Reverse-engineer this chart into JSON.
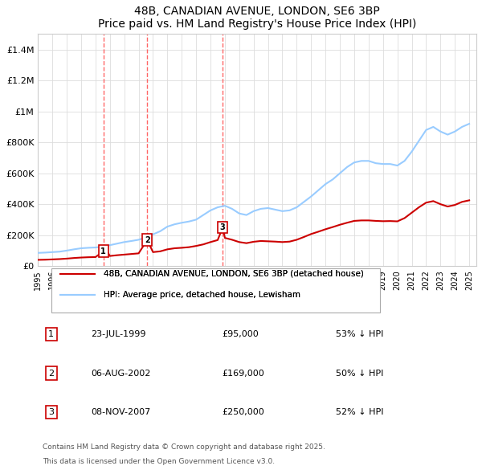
{
  "title": "48B, CANADIAN AVENUE, LONDON, SE6 3BP",
  "subtitle": "Price paid vs. HM Land Registry's House Price Index (HPI)",
  "legend_property": "48B, CANADIAN AVENUE, LONDON, SE6 3BP (detached house)",
  "legend_hpi": "HPI: Average price, detached house, Lewisham",
  "footer1": "Contains HM Land Registry data © Crown copyright and database right 2025.",
  "footer2": "This data is licensed under the Open Government Licence v3.0.",
  "sales": [
    {
      "label": "1",
      "date": "23-JUL-1999",
      "price": 95000,
      "year": 1999.55,
      "hpi_pct": "53% ↓ HPI"
    },
    {
      "label": "2",
      "date": "06-AUG-2002",
      "price": 169000,
      "year": 2002.6,
      "hpi_pct": "50% ↓ HPI"
    },
    {
      "label": "3",
      "date": "08-NOV-2007",
      "price": 250000,
      "year": 2007.85,
      "hpi_pct": "52% ↓ HPI"
    }
  ],
  "property_color": "#cc0000",
  "hpi_color": "#99ccff",
  "vline_color": "#ff6666",
  "background_color": "#ffffff",
  "grid_color": "#dddddd",
  "ylim": [
    0,
    1500000
  ],
  "xlim_start": 1995.0,
  "xlim_end": 2025.5,
  "hpi_data": {
    "years": [
      1995.0,
      1995.5,
      1996.0,
      1996.5,
      1997.0,
      1997.5,
      1998.0,
      1998.5,
      1999.0,
      1999.5,
      2000.0,
      2000.5,
      2001.0,
      2001.5,
      2002.0,
      2002.5,
      2003.0,
      2003.5,
      2004.0,
      2004.5,
      2005.0,
      2005.5,
      2006.0,
      2006.5,
      2007.0,
      2007.5,
      2008.0,
      2008.5,
      2009.0,
      2009.5,
      2010.0,
      2010.5,
      2011.0,
      2011.5,
      2012.0,
      2012.5,
      2013.0,
      2013.5,
      2014.0,
      2014.5,
      2015.0,
      2015.5,
      2016.0,
      2016.5,
      2017.0,
      2017.5,
      2018.0,
      2018.5,
      2019.0,
      2019.5,
      2020.0,
      2020.5,
      2021.0,
      2021.5,
      2022.0,
      2022.5,
      2023.0,
      2023.5,
      2024.0,
      2024.5,
      2025.0
    ],
    "values": [
      85000,
      87000,
      90000,
      93000,
      100000,
      108000,
      115000,
      118000,
      120000,
      125000,
      135000,
      145000,
      155000,
      162000,
      170000,
      185000,
      205000,
      225000,
      255000,
      270000,
      280000,
      288000,
      300000,
      330000,
      360000,
      380000,
      390000,
      370000,
      340000,
      330000,
      355000,
      370000,
      375000,
      365000,
      355000,
      360000,
      380000,
      415000,
      450000,
      490000,
      530000,
      560000,
      600000,
      640000,
      670000,
      680000,
      680000,
      665000,
      660000,
      660000,
      650000,
      680000,
      740000,
      810000,
      880000,
      900000,
      870000,
      850000,
      870000,
      900000,
      920000
    ]
  },
  "property_data": {
    "years": [
      1995.0,
      1995.5,
      1996.0,
      1996.5,
      1997.0,
      1997.5,
      1998.0,
      1998.5,
      1999.0,
      1999.55,
      1999.8,
      2000.0,
      2000.5,
      2001.0,
      2001.5,
      2002.0,
      2002.6,
      2003.0,
      2003.5,
      2004.0,
      2004.5,
      2005.0,
      2005.5,
      2006.0,
      2006.5,
      2007.0,
      2007.5,
      2007.85,
      2008.0,
      2008.5,
      2009.0,
      2009.5,
      2010.0,
      2010.5,
      2011.0,
      2011.5,
      2012.0,
      2012.5,
      2013.0,
      2013.5,
      2014.0,
      2014.5,
      2015.0,
      2015.5,
      2016.0,
      2016.5,
      2017.0,
      2017.5,
      2018.0,
      2018.5,
      2019.0,
      2019.5,
      2020.0,
      2020.5,
      2021.0,
      2021.5,
      2022.0,
      2022.5,
      2023.0,
      2023.5,
      2024.0,
      2024.5,
      2025.0
    ],
    "values": [
      40000,
      41000,
      43000,
      45000,
      48000,
      52000,
      55000,
      57000,
      58000,
      95000,
      97000,
      65000,
      70000,
      74000,
      78000,
      82000,
      169000,
      90000,
      95000,
      108000,
      115000,
      118000,
      122000,
      130000,
      140000,
      155000,
      168000,
      250000,
      182000,
      170000,
      155000,
      148000,
      157000,
      162000,
      160000,
      158000,
      155000,
      158000,
      170000,
      188000,
      207000,
      222000,
      238000,
      252000,
      267000,
      280000,
      292000,
      295000,
      295000,
      292000,
      290000,
      291000,
      289000,
      310000,
      345000,
      380000,
      410000,
      420000,
      400000,
      385000,
      395000,
      415000,
      425000
    ]
  },
  "yticks": [
    0,
    200000,
    400000,
    600000,
    800000,
    1000000,
    1200000,
    1400000
  ],
  "ytick_labels": [
    "£0",
    "£200K",
    "£400K",
    "£600K",
    "£800K",
    "£1M",
    "£1.2M",
    "£1.4M"
  ],
  "xticks": [
    1995,
    1996,
    1997,
    1998,
    1999,
    2000,
    2001,
    2002,
    2003,
    2004,
    2005,
    2006,
    2007,
    2008,
    2009,
    2010,
    2011,
    2012,
    2013,
    2014,
    2015,
    2016,
    2017,
    2018,
    2019,
    2020,
    2021,
    2022,
    2023,
    2024,
    2025
  ]
}
